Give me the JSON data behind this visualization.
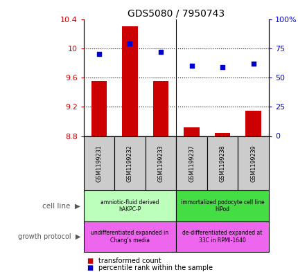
{
  "title": "GDS5080 / 7950743",
  "samples": [
    "GSM1199231",
    "GSM1199232",
    "GSM1199233",
    "GSM1199237",
    "GSM1199238",
    "GSM1199239"
  ],
  "transformed_count": [
    9.55,
    10.3,
    9.55,
    8.92,
    8.84,
    9.15
  ],
  "percentile_rank": [
    70,
    79,
    72,
    60,
    59,
    62
  ],
  "ylim_left": [
    8.8,
    10.4
  ],
  "ylim_right": [
    0,
    100
  ],
  "yticks_left": [
    8.8,
    9.2,
    9.6,
    10.0,
    10.4
  ],
  "yticks_right": [
    0,
    25,
    50,
    75,
    100
  ],
  "ytick_labels_left": [
    "8.8",
    "9.2",
    "9.6",
    "10",
    "10.4"
  ],
  "ytick_labels_right": [
    "0",
    "25",
    "50",
    "75",
    "100%"
  ],
  "bar_color": "#cc0000",
  "dot_color": "#0000cc",
  "cell_line_groups": [
    {
      "label": "amniotic-fluid derived\nhAKPC-P",
      "samples": [
        0,
        1,
        2
      ],
      "color": "#bbffbb"
    },
    {
      "label": "immortalized podocyte cell line\nhIPod",
      "samples": [
        3,
        4,
        5
      ],
      "color": "#44dd44"
    }
  ],
  "growth_protocol_groups": [
    {
      "label": "undifferentiated expanded in\nChang's media",
      "samples": [
        0,
        1,
        2
      ],
      "color": "#ee66ee"
    },
    {
      "label": "de-differentiated expanded at\n33C in RPMI-1640",
      "samples": [
        3,
        4,
        5
      ],
      "color": "#ee66ee"
    }
  ],
  "sample_box_color": "#cccccc",
  "tick_label_color_left": "#cc0000",
  "tick_label_color_right": "#0000cc"
}
